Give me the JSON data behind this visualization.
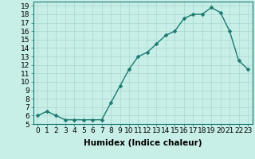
{
  "x": [
    0,
    1,
    2,
    3,
    4,
    5,
    6,
    7,
    8,
    9,
    10,
    11,
    12,
    13,
    14,
    15,
    16,
    17,
    18,
    19,
    20,
    21,
    22,
    23
  ],
  "y": [
    6.0,
    6.5,
    6.0,
    5.5,
    5.5,
    5.5,
    5.5,
    5.5,
    7.5,
    9.5,
    11.5,
    13.0,
    13.5,
    14.5,
    15.5,
    16.0,
    17.5,
    18.0,
    18.0,
    18.8,
    18.2,
    16.0,
    12.5,
    11.5
  ],
  "line_color": "#1a7a6e",
  "bg_color": "#c8eee8",
  "grid_color": "#a8d8d0",
  "xlabel": "Humidex (Indice chaleur)",
  "xlim": [
    -0.5,
    23.5
  ],
  "ylim": [
    5,
    19.5
  ],
  "yticks": [
    5,
    6,
    7,
    8,
    9,
    10,
    11,
    12,
    13,
    14,
    15,
    16,
    17,
    18,
    19
  ],
  "xticks": [
    0,
    1,
    2,
    3,
    4,
    5,
    6,
    7,
    8,
    9,
    10,
    11,
    12,
    13,
    14,
    15,
    16,
    17,
    18,
    19,
    20,
    21,
    22,
    23
  ],
  "font_size": 6.5,
  "xlabel_fontsize": 7.5,
  "marker_size": 2.5,
  "line_width": 1.0
}
